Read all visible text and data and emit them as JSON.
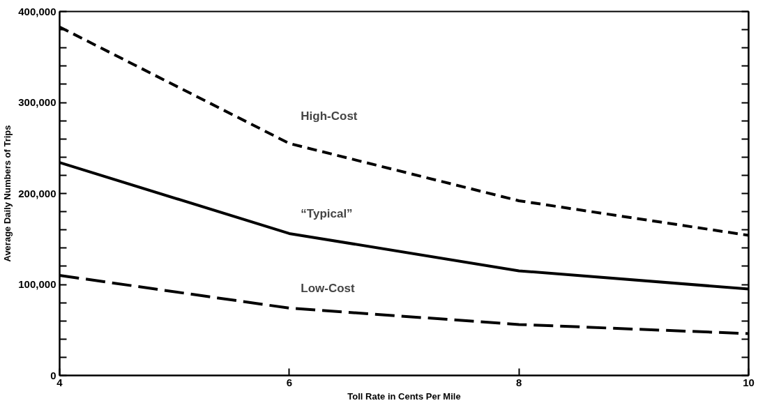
{
  "chart_data": {
    "type": "line",
    "xlabel": "Toll Rate in Cents Per Mile",
    "ylabel": "Average Daily Numbers of Trips",
    "x": [
      4,
      6,
      8,
      10
    ],
    "series": [
      {
        "name": "High-Cost",
        "color": "#000000",
        "line_style": "dashed",
        "values": [
          383000,
          255000,
          192000,
          154000
        ]
      },
      {
        "name": "“Typical”",
        "color": "#000000",
        "line_style": "solid",
        "values": [
          234000,
          156000,
          115000,
          95000
        ]
      },
      {
        "name": "Low-Cost",
        "color": "#000000",
        "line_style": "dashed",
        "values": [
          110000,
          74000,
          56000,
          46000
        ]
      }
    ],
    "xlim": [
      4,
      10
    ],
    "xticks": [
      4,
      6,
      8,
      10
    ],
    "ylim": [
      0,
      400000
    ],
    "yticks": [
      {
        "value": 0,
        "label": "0"
      },
      {
        "value": 20000,
        "label": null
      },
      {
        "value": 40000,
        "label": null
      },
      {
        "value": 60000,
        "label": null
      },
      {
        "value": 80000,
        "label": null
      },
      {
        "value": 100000,
        "label": "100,000"
      },
      {
        "value": 120000,
        "label": null
      },
      {
        "value": 140000,
        "label": null
      },
      {
        "value": 160000,
        "label": null
      },
      {
        "value": 180000,
        "label": null
      },
      {
        "value": 200000,
        "label": "200,000"
      },
      {
        "value": 220000,
        "label": null
      },
      {
        "value": 240000,
        "label": null
      },
      {
        "value": 260000,
        "label": null
      },
      {
        "value": 280000,
        "label": null
      },
      {
        "value": 300000,
        "label": "300,000"
      },
      {
        "value": 320000,
        "label": null
      },
      {
        "value": 340000,
        "label": null
      },
      {
        "value": 360000,
        "label": null
      },
      {
        "value": 380000,
        "label": null
      },
      {
        "value": 400000,
        "label": "400,000"
      }
    ],
    "grid": false,
    "legend": false,
    "marker": "none"
  }
}
